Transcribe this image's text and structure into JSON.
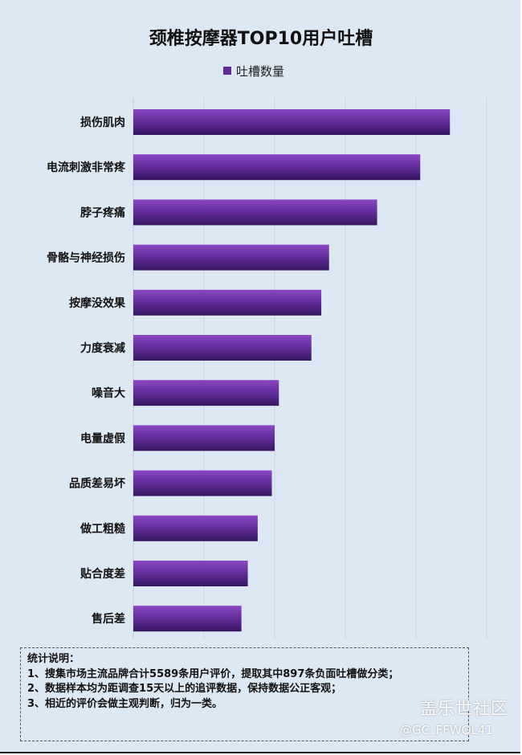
{
  "chart_data": {
    "type": "bar",
    "orientation": "horizontal",
    "title": "颈椎按摩器TOP10用户吐槽",
    "legend_position": "top",
    "grid": true,
    "xlim": [
      0,
      500
    ],
    "categories": [
      "损伤肌肉",
      "电流刺激非常疼",
      "脖子疼痛",
      "骨骼与神经损伤",
      "按摩没效果",
      "力度衰减",
      "噪音大",
      "电量虚假",
      "品质差易坏",
      "做工粗糙",
      "贴合度差",
      "售后差"
    ],
    "series": [
      {
        "name": "吐槽数量",
        "values": [
          448,
          406,
          345,
          277,
          266,
          252,
          206,
          200,
          196,
          176,
          162,
          153
        ]
      }
    ],
    "colors": {
      "bar_top": "#7a3bb5",
      "bar_bottom": "#3a1a6a",
      "background": "#dde8f5"
    }
  },
  "notes": {
    "heading": "统计说明：",
    "lines": [
      "1、搜集市场主流品牌合计5589条用户评价，提取其中897条负面吐槽做分类；",
      "2、数据样本均为距调查15天以上的追评数据，保持数据公正客观；",
      "3、相近的评价会做主观判断，归为一类。"
    ]
  },
  "watermark": {
    "site": "盖乐世社区",
    "handle": "@GC_FFWOL41"
  }
}
